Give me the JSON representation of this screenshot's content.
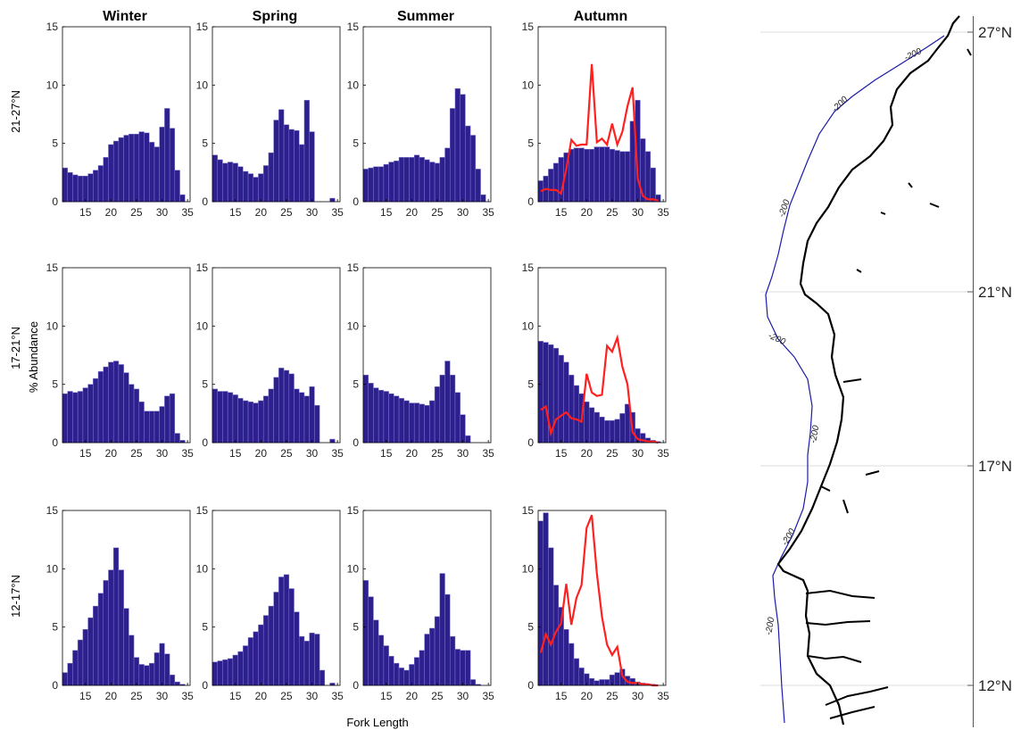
{
  "figure": {
    "seasons": [
      "Winter",
      "Spring",
      "Summer",
      "Autumn"
    ],
    "regions": [
      "21-27°N",
      "17-21°N",
      "12-17°N"
    ],
    "xlabel": "Fork Length",
    "ylabel": "% Abundance",
    "map": {
      "lat_labels": [
        "27°N",
        "21°N",
        "17°N",
        "12°N"
      ],
      "contour_label": "-200"
    }
  },
  "colors": {
    "bars": "#2e1f8f",
    "bar_edge": "#7a7acb",
    "line": "#ff2020",
    "map_coast": "#000000",
    "map_contour": "#1a1aa8",
    "axes": "#000000"
  },
  "chart_data": {
    "type": "bar",
    "x_start": 11,
    "x_step": 1,
    "xticks": [
      15,
      20,
      25,
      30,
      35
    ],
    "yticks": [
      0,
      5,
      10,
      15
    ],
    "xlim": [
      10.5,
      35.5
    ],
    "ylim": [
      0,
      15
    ],
    "panels": [
      {
        "region": "21-27°N",
        "season": "Winter",
        "values": [
          2.9,
          2.5,
          2.3,
          2.2,
          2.2,
          2.4,
          2.7,
          3.1,
          3.8,
          4.9,
          5.2,
          5.5,
          5.7,
          5.8,
          5.8,
          6.0,
          5.9,
          5.1,
          4.7,
          6.4,
          8.0,
          6.3,
          2.7,
          0.6
        ]
      },
      {
        "region": "21-27°N",
        "season": "Spring",
        "values": [
          4.0,
          3.6,
          3.3,
          3.4,
          3.3,
          3.0,
          2.6,
          2.4,
          2.1,
          2.4,
          3.1,
          4.2,
          7.0,
          7.9,
          6.6,
          6.2,
          6.1,
          4.9,
          8.7,
          6.0,
          0,
          0,
          0,
          0.3
        ]
      },
      {
        "region": "21-27°N",
        "season": "Summer",
        "values": [
          2.8,
          2.9,
          3.0,
          3.0,
          3.2,
          3.4,
          3.5,
          3.8,
          3.8,
          3.8,
          4.0,
          3.8,
          3.6,
          3.4,
          3.3,
          3.8,
          4.6,
          8.0,
          9.7,
          9.2,
          6.5,
          5.7,
          2.8,
          0.6
        ]
      },
      {
        "region": "21-27°N",
        "season": "Autumn",
        "values": [
          1.8,
          2.2,
          2.8,
          3.3,
          3.8,
          4.2,
          4.5,
          4.6,
          4.6,
          4.5,
          4.5,
          4.7,
          4.7,
          4.7,
          4.5,
          4.4,
          4.3,
          4.3,
          6.9,
          8.7,
          5.4,
          4.3,
          2.9,
          0.6
        ],
        "line": [
          0.9,
          1.1,
          1.0,
          1.0,
          0.7,
          2.8,
          5.3,
          4.8,
          4.9,
          4.9,
          11.8,
          5.1,
          5.4,
          4.9,
          6.7,
          4.9,
          6.0,
          8.2,
          9.8,
          2.0,
          0.5,
          0.2,
          0.2,
          0.1
        ]
      },
      {
        "region": "17-21°N",
        "season": "Winter",
        "values": [
          4.2,
          4.4,
          4.3,
          4.4,
          4.7,
          5.0,
          5.5,
          6.1,
          6.5,
          6.9,
          7.0,
          6.7,
          6.0,
          5.0,
          4.6,
          3.5,
          2.7,
          2.7,
          2.7,
          3.1,
          4.0,
          4.2,
          0.8,
          0.2
        ]
      },
      {
        "region": "17-21°N",
        "season": "Spring",
        "values": [
          4.6,
          4.4,
          4.4,
          4.3,
          4.1,
          3.8,
          3.6,
          3.5,
          3.4,
          3.6,
          4.0,
          4.6,
          5.6,
          6.4,
          6.2,
          5.9,
          4.6,
          4.3,
          4.0,
          4.8,
          3.2,
          0,
          0,
          0.3
        ]
      },
      {
        "region": "17-21°N",
        "season": "Summer",
        "values": [
          5.8,
          5.1,
          4.7,
          4.5,
          4.4,
          4.2,
          4.0,
          3.8,
          3.6,
          3.4,
          3.4,
          3.3,
          3.2,
          3.6,
          4.8,
          5.8,
          7.0,
          5.8,
          4.3,
          2.4,
          0.6,
          0,
          0,
          0
        ]
      },
      {
        "region": "17-21°N",
        "season": "Autumn",
        "values": [
          8.7,
          8.6,
          8.4,
          8.1,
          7.5,
          6.9,
          5.8,
          4.9,
          4.2,
          3.5,
          3.0,
          2.6,
          2.2,
          1.9,
          1.9,
          2.0,
          2.5,
          3.3,
          2.6,
          1.2,
          0.8,
          0.4,
          0.2,
          0.1
        ],
        "line": [
          2.8,
          3.1,
          0.8,
          2.0,
          2.3,
          2.6,
          2.1,
          2.0,
          1.8,
          5.9,
          4.3,
          4.0,
          4.1,
          8.3,
          7.8,
          9.0,
          6.5,
          5.0,
          0.9,
          0.3,
          0.2,
          0.1,
          0.1,
          0
        ]
      },
      {
        "region": "12-17°N",
        "season": "Winter",
        "values": [
          1.1,
          1.9,
          3.0,
          3.9,
          4.8,
          5.8,
          6.8,
          7.9,
          9.0,
          9.9,
          11.8,
          9.9,
          6.6,
          4.3,
          2.4,
          1.8,
          1.7,
          1.9,
          2.8,
          3.6,
          2.7,
          0.9,
          0.3,
          0.1
        ]
      },
      {
        "region": "12-17°N",
        "season": "Spring",
        "values": [
          2.0,
          2.1,
          2.2,
          2.3,
          2.6,
          2.9,
          3.4,
          4.1,
          4.6,
          5.2,
          6.0,
          6.8,
          8.0,
          9.3,
          9.5,
          8.3,
          6.3,
          4.2,
          3.8,
          4.5,
          4.4,
          1.3,
          0,
          0.2
        ]
      },
      {
        "region": "12-17°N",
        "season": "Summer",
        "values": [
          9.0,
          7.6,
          5.6,
          4.3,
          3.4,
          2.5,
          1.9,
          1.5,
          1.3,
          1.8,
          2.4,
          3.0,
          4.4,
          4.9,
          5.9,
          9.6,
          7.8,
          4.2,
          3.1,
          3.0,
          3.0,
          0.5,
          0.1,
          0
        ]
      },
      {
        "region": "12-17°N",
        "season": "Autumn",
        "values": [
          14.1,
          14.8,
          11.8,
          8.6,
          6.7,
          4.8,
          3.6,
          2.3,
          1.5,
          1.0,
          0.6,
          0.4,
          0.5,
          0.5,
          0.9,
          1.1,
          1.4,
          0.8,
          0.6,
          0.3,
          0.2,
          0.1,
          0.1,
          0
        ],
        "line": [
          2.8,
          4.4,
          3.5,
          4.6,
          5.3,
          8.7,
          5.2,
          7.5,
          8.6,
          13.5,
          14.6,
          9.6,
          5.9,
          3.5,
          2.6,
          3.3,
          0.8,
          0.3,
          0.2,
          0.2,
          0.1,
          0.1,
          0,
          0
        ]
      }
    ]
  }
}
